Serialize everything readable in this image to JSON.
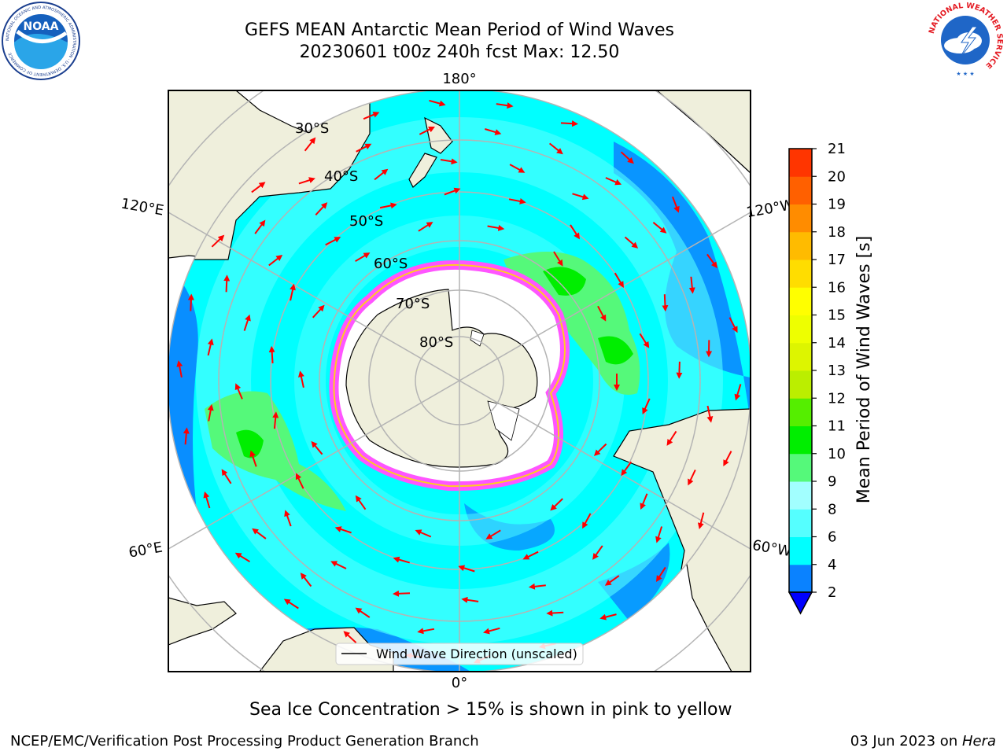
{
  "title_line1": "GEFS MEAN Antarctic Mean Period of Wind Waves",
  "title_line2": "20230601 t00z 240h fcst   Max: 12.50",
  "logos": {
    "noaa_text": "NOAA",
    "noaa_ring": "NATIONAL OCEANIC AND ATMOSPHERIC ADMINISTRATION · U.S. DEPARTMENT OF COMMERCE",
    "nws_ring": "NATIONAL WEATHER SERVICE"
  },
  "map": {
    "projection": "south-polar-stereographic",
    "longitude_labels": {
      "top": "180°",
      "bottom": "0°",
      "upper_left": "120°E",
      "upper_right": "120°W",
      "lower_left": "60°E",
      "lower_right": "60°W"
    },
    "latitude_labels": [
      "30°S",
      "40°S",
      "50°S",
      "60°S",
      "70°S",
      "80°S"
    ],
    "legend": "Wind Wave Direction (unscaled)",
    "colors": {
      "land": "#efefdc",
      "ocean_low": "#00ffff",
      "ocean_mid": "#55ffff",
      "ocean_blue": "#0a82ff",
      "green": "#55f97a",
      "bright_green": "#00ee00",
      "ice_pink": "#ff55ff",
      "ice_yellow": "#ffcc22",
      "arrow": "#ff0000",
      "grid": "#b4b4b4"
    }
  },
  "colorbar": {
    "label": "Mean Period of Wind Waves [s]",
    "ticks": [
      "2",
      "4",
      "6",
      "8",
      "9",
      "10",
      "11",
      "12",
      "13",
      "14",
      "15",
      "16",
      "17",
      "18",
      "19",
      "20",
      "21"
    ],
    "colors": [
      "#0a82ff",
      "#00ffff",
      "#55ffff",
      "#a2ffff",
      "#55f97a",
      "#00ee00",
      "#55ee00",
      "#bbee00",
      "#ddf500",
      "#eeff00",
      "#ffff00",
      "#ffdd00",
      "#ffbb00",
      "#ff8c00",
      "#ff6000",
      "#ff3500",
      "#ff0000"
    ],
    "extend_color": "#0000ff"
  },
  "caption": "Sea Ice Concentration > 15% is shown in pink to yellow",
  "footer_left": "NCEP/EMC/Verification Post Processing Product Generation Branch",
  "footer_right_prefix": "03 Jun 2023 on ",
  "footer_right_host": "Hera"
}
